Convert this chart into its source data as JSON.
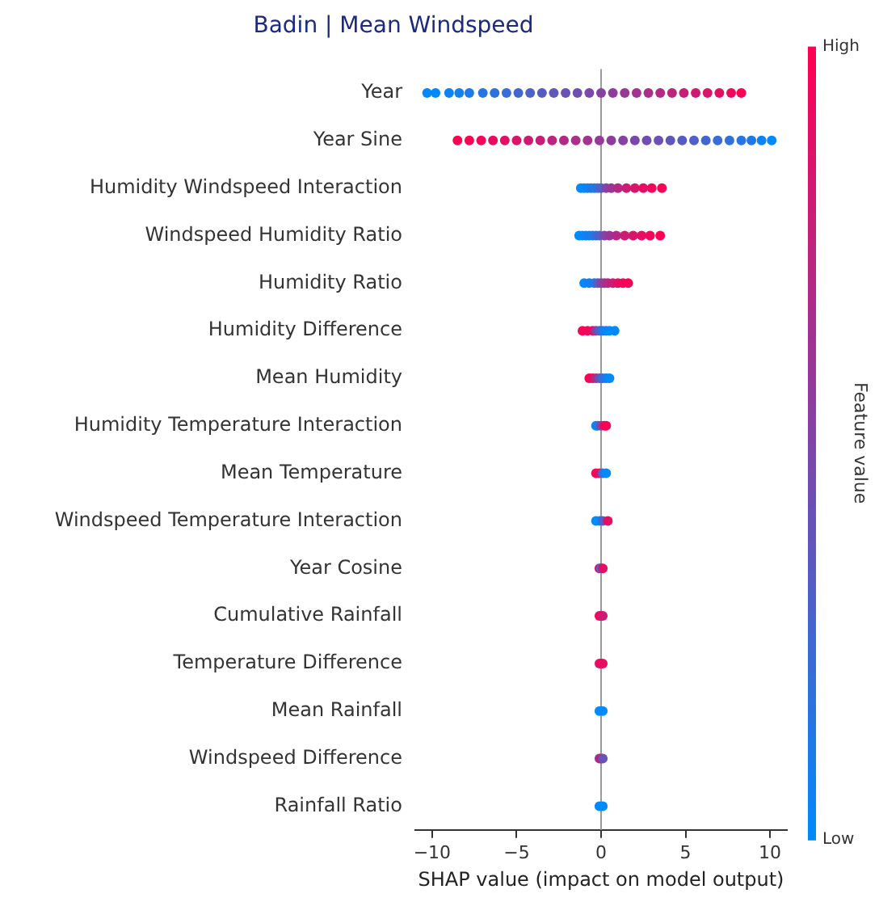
{
  "chart_data": {
    "type": "scatter",
    "title": "Badin | Mean Windspeed",
    "xlabel": "SHAP value (impact on model output)",
    "clabel": "Feature value",
    "orientation": "horizontal",
    "categories": [
      "Year",
      "Year Sine",
      "Humidity Windspeed Interaction",
      "Windspeed Humidity Ratio",
      "Humidity Ratio",
      "Humidity Difference",
      "Mean Humidity",
      "Humidity Temperature Interaction",
      "Mean Temperature",
      "Windspeed Temperature Interaction",
      "Year Cosine",
      "Cumulative Rainfall",
      "Temperature Difference",
      "Mean Rainfall",
      "Windspeed Difference",
      "Rainfall Ratio"
    ],
    "xlim": [
      -11,
      11
    ],
    "xticks": [
      {
        "value": -10,
        "label": "−10"
      },
      {
        "value": -5,
        "label": "−5"
      },
      0,
      5,
      10
    ],
    "clim": [
      0,
      1
    ],
    "cticks": [
      {
        "value": 0,
        "label": "Low"
      },
      {
        "value": 1,
        "label": "High"
      }
    ],
    "ref_lines": [
      {
        "axis": "x",
        "value": 0,
        "color": "#999999"
      }
    ],
    "grid": false,
    "legend": false,
    "marker": "circle",
    "series": [
      {
        "x": [
          "Year",
          "Year",
          "Year",
          "Year",
          "Year",
          "Year",
          "Year",
          "Year",
          "Year",
          "Year",
          "Year",
          "Year",
          "Year",
          "Year",
          "Year",
          "Year",
          "Year",
          "Year",
          "Year",
          "Year",
          "Year",
          "Year",
          "Year",
          "Year",
          "Year",
          "Year",
          "Year",
          "Year",
          "Year Sine",
          "Year Sine",
          "Year Sine",
          "Year Sine",
          "Year Sine",
          "Year Sine",
          "Year Sine",
          "Year Sine",
          "Year Sine",
          "Year Sine",
          "Year Sine",
          "Year Sine",
          "Year Sine",
          "Year Sine",
          "Year Sine",
          "Year Sine",
          "Year Sine",
          "Year Sine",
          "Year Sine",
          "Year Sine",
          "Year Sine",
          "Year Sine",
          "Year Sine",
          "Year Sine",
          "Year Sine",
          "Year Sine",
          "Year Sine",
          "Year Sine",
          "Humidity Windspeed Interaction",
          "Humidity Windspeed Interaction",
          "Humidity Windspeed Interaction",
          "Humidity Windspeed Interaction",
          "Humidity Windspeed Interaction",
          "Humidity Windspeed Interaction",
          "Humidity Windspeed Interaction",
          "Humidity Windspeed Interaction",
          "Humidity Windspeed Interaction",
          "Humidity Windspeed Interaction",
          "Humidity Windspeed Interaction",
          "Humidity Windspeed Interaction",
          "Humidity Windspeed Interaction",
          "Humidity Windspeed Interaction",
          "Humidity Windspeed Interaction",
          "Windspeed Humidity Ratio",
          "Windspeed Humidity Ratio",
          "Windspeed Humidity Ratio",
          "Windspeed Humidity Ratio",
          "Windspeed Humidity Ratio",
          "Windspeed Humidity Ratio",
          "Windspeed Humidity Ratio",
          "Windspeed Humidity Ratio",
          "Windspeed Humidity Ratio",
          "Windspeed Humidity Ratio",
          "Windspeed Humidity Ratio",
          "Windspeed Humidity Ratio",
          "Windspeed Humidity Ratio",
          "Windspeed Humidity Ratio",
          "Windspeed Humidity Ratio",
          "Humidity Ratio",
          "Humidity Ratio",
          "Humidity Ratio",
          "Humidity Ratio",
          "Humidity Ratio",
          "Humidity Ratio",
          "Humidity Ratio",
          "Humidity Ratio",
          "Humidity Ratio",
          "Humidity Ratio",
          "Humidity Ratio",
          "Humidity Difference",
          "Humidity Difference",
          "Humidity Difference",
          "Humidity Difference",
          "Humidity Difference",
          "Humidity Difference",
          "Humidity Difference",
          "Humidity Difference",
          "Humidity Difference",
          "Mean Humidity",
          "Mean Humidity",
          "Mean Humidity",
          "Mean Humidity",
          "Mean Humidity",
          "Mean Humidity",
          "Mean Humidity",
          "Humidity Temperature Interaction",
          "Humidity Temperature Interaction",
          "Humidity Temperature Interaction",
          "Humidity Temperature Interaction",
          "Humidity Temperature Interaction",
          "Mean Temperature",
          "Mean Temperature",
          "Mean Temperature",
          "Mean Temperature",
          "Windspeed Temperature Interaction",
          "Windspeed Temperature Interaction",
          "Windspeed Temperature Interaction",
          "Windspeed Temperature Interaction",
          "Year Cosine",
          "Year Cosine",
          "Year Cosine",
          "Cumulative Rainfall",
          "Cumulative Rainfall",
          "Cumulative Rainfall",
          "Temperature Difference",
          "Temperature Difference",
          "Temperature Difference",
          "Mean Rainfall",
          "Mean Rainfall",
          "Windspeed Difference",
          "Windspeed Difference",
          "Windspeed Difference",
          "Rainfall Ratio",
          "Rainfall Ratio"
        ],
        "values": [
          -10.3,
          -9.8,
          -9.0,
          -8.4,
          -7.8,
          -7.0,
          -6.3,
          -5.6,
          -4.9,
          -4.2,
          -3.5,
          -2.8,
          -2.1,
          -1.4,
          -0.7,
          0,
          0.7,
          1.4,
          2.1,
          2.8,
          3.5,
          4.2,
          4.9,
          5.6,
          6.3,
          7.0,
          7.7,
          8.3,
          -8.5,
          -7.8,
          -7.1,
          -6.4,
          -5.7,
          -5.0,
          -4.3,
          -3.6,
          -2.9,
          -2.2,
          -1.5,
          -0.8,
          -0.1,
          0.6,
          1.3,
          2.0,
          2.7,
          3.4,
          4.1,
          4.8,
          5.5,
          6.2,
          6.9,
          7.6,
          8.3,
          8.9,
          9.5,
          10.1,
          -1.2,
          -1,
          -0.8,
          -0.6,
          -0.4,
          -0.2,
          0,
          0.3,
          0.6,
          1,
          1.5,
          2,
          2.5,
          3,
          3.6,
          -1.3,
          -1.1,
          -0.9,
          -0.7,
          -0.5,
          -0.3,
          -0.1,
          0.2,
          0.5,
          0.9,
          1.4,
          1.9,
          2.4,
          2.9,
          3.5,
          -1,
          -0.7,
          -0.4,
          -0.2,
          0,
          0.2,
          0.4,
          0.7,
          1,
          1.3,
          1.6,
          -1.1,
          -0.8,
          -0.5,
          -0.3,
          -0.1,
          0.1,
          0.3,
          0.5,
          0.8,
          -0.7,
          -0.5,
          -0.3,
          -0.1,
          0.1,
          0.3,
          0.5,
          -0.3,
          -0.2,
          0,
          0.2,
          0.3,
          -0.3,
          -0.1,
          0.1,
          0.3,
          -0.3,
          -0.1,
          0.1,
          0.4,
          -0.1,
          0,
          0.1,
          -0.1,
          0,
          0.1,
          -0.1,
          0,
          0.1,
          -0.1,
          0.1,
          -0.1,
          0,
          0.1,
          -0.1,
          0.1
        ],
        "cvalues": [
          0,
          0,
          0.04,
          0.07,
          0.11,
          0.15,
          0.19,
          0.22,
          0.26,
          0.3,
          0.33,
          0.37,
          0.41,
          0.44,
          0.48,
          0.52,
          0.56,
          0.59,
          0.63,
          0.67,
          0.7,
          0.74,
          0.78,
          0.81,
          0.85,
          0.89,
          0.93,
          1,
          1,
          1,
          0.96,
          0.93,
          0.89,
          0.85,
          0.81,
          0.78,
          0.74,
          0.7,
          0.67,
          0.63,
          0.59,
          0.56,
          0.52,
          0.48,
          0.44,
          0.41,
          0.37,
          0.33,
          0.3,
          0.26,
          0.22,
          0.19,
          0.15,
          0.11,
          0.04,
          0,
          0,
          0,
          0.05,
          0.1,
          0.1,
          0.2,
          0.3,
          0.5,
          0.6,
          0.7,
          0.8,
          0.85,
          0.9,
          0.95,
          1,
          0,
          0,
          0.05,
          0.1,
          0.1,
          0.2,
          0.3,
          0.5,
          0.6,
          0.7,
          0.8,
          0.85,
          0.9,
          0.95,
          1,
          0,
          0.05,
          0.1,
          0.3,
          0.5,
          0.6,
          0.7,
          0.8,
          0.9,
          0.95,
          1,
          1,
          0.95,
          0.9,
          0.6,
          0.3,
          0.1,
          0.05,
          0,
          0,
          1,
          0.9,
          0.7,
          0.4,
          0.2,
          0.1,
          0,
          0,
          0.1,
          0.5,
          0.9,
          1,
          1,
          0.9,
          0.2,
          0,
          0,
          0,
          0.3,
          0.9,
          0.9,
          0.1,
          0.9,
          0.9,
          1,
          0.8,
          0.8,
          1,
          0.9,
          0,
          0,
          0.5,
          0.9,
          0.4,
          0,
          0
        ]
      }
    ]
  }
}
